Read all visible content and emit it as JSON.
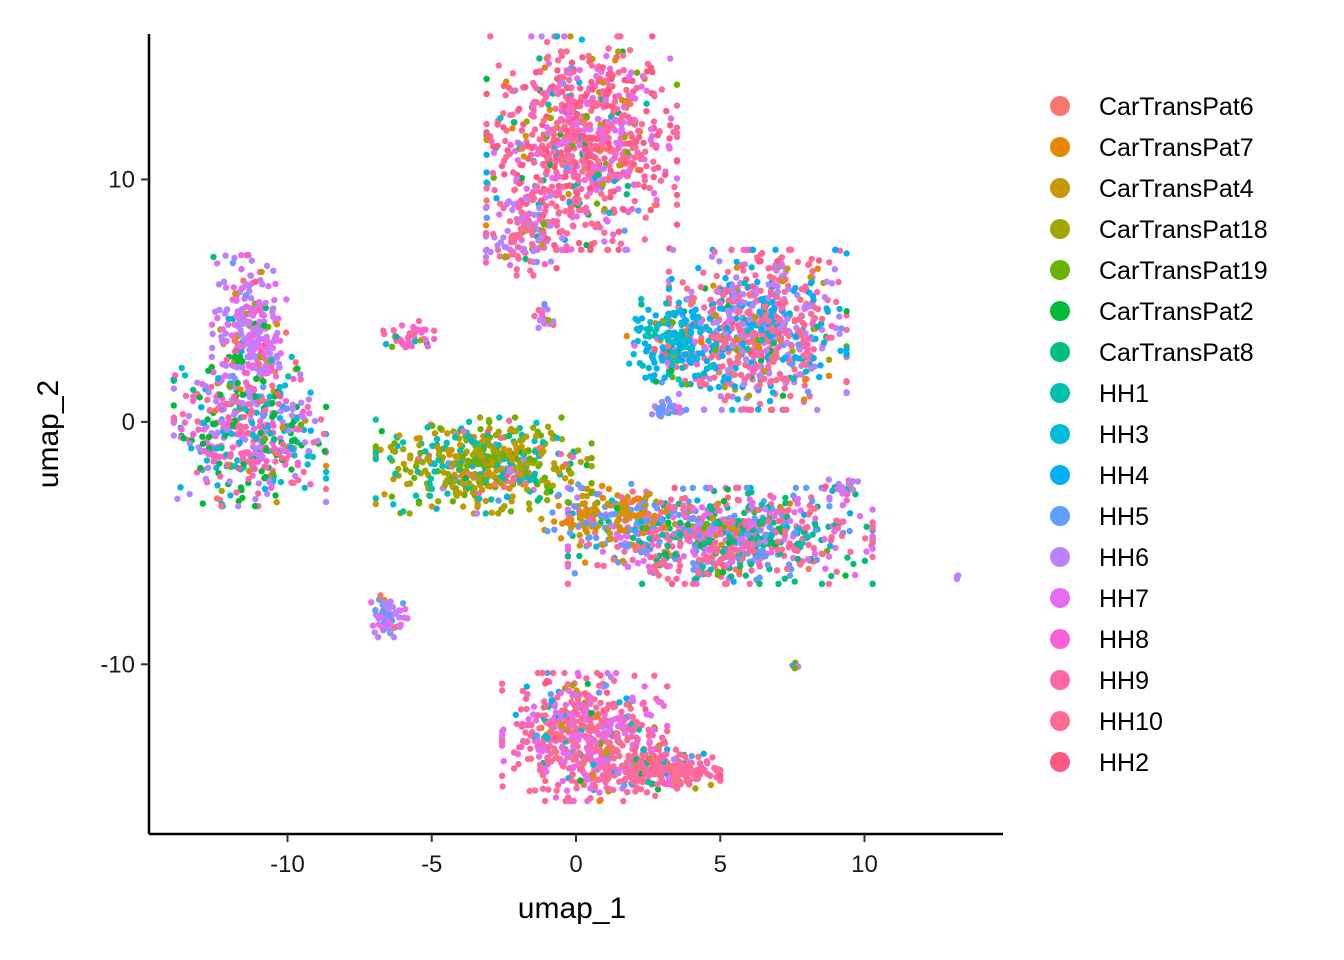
{
  "chart_data": {
    "type": "scatter",
    "title": "",
    "xlabel": "umap_1",
    "ylabel": "umap_2",
    "xlim": [
      -14.8,
      14.8
    ],
    "ylim": [
      -17.0,
      16.0
    ],
    "xticks": [
      -10,
      -5,
      0,
      5,
      10
    ],
    "xtick_labels": [
      "-10",
      "-5",
      "0",
      "5",
      "10"
    ],
    "yticks": [
      -10,
      0,
      10
    ],
    "ytick_labels": [
      "-10",
      "0",
      "10"
    ],
    "grid": false,
    "legend_position": "right",
    "series": [
      {
        "name": "CarTransPat6",
        "color": "#F8766D"
      },
      {
        "name": "CarTransPat7",
        "color": "#E58700"
      },
      {
        "name": "CarTransPat4",
        "color": "#C99800"
      },
      {
        "name": "CarTransPat18",
        "color": "#A3A500"
      },
      {
        "name": "CarTransPat19",
        "color": "#6BB100"
      },
      {
        "name": "CarTransPat2",
        "color": "#00BA38"
      },
      {
        "name": "CarTransPat8",
        "color": "#00BF7D"
      },
      {
        "name": "HH1",
        "color": "#00C0AF"
      },
      {
        "name": "HH3",
        "color": "#00BCD8"
      },
      {
        "name": "HH4",
        "color": "#00B0F6"
      },
      {
        "name": "HH5",
        "color": "#619CFF"
      },
      {
        "name": "HH6",
        "color": "#B983FF"
      },
      {
        "name": "HH7",
        "color": "#E76BF3"
      },
      {
        "name": "HH8",
        "color": "#FD61D1"
      },
      {
        "name": "HH9",
        "color": "#FF67A4"
      },
      {
        "name": "HH10",
        "color": "#FF6C91"
      },
      {
        "name": "HH2",
        "color": "#FF5A84"
      }
    ],
    "clusters": [
      {
        "center": [
          0.2,
          11.5
        ],
        "spread": [
          1.5,
          2.0
        ],
        "n": 900,
        "dominant": [
          14,
          15,
          12,
          16
        ]
      },
      {
        "center": [
          -1.8,
          7.8
        ],
        "spread": [
          0.6,
          0.8
        ],
        "n": 140,
        "dominant": [
          14,
          15,
          11
        ]
      },
      {
        "center": [
          -11.3,
          3.8
        ],
        "spread": [
          0.6,
          1.4
        ],
        "n": 260,
        "dominant": [
          11,
          12
        ]
      },
      {
        "center": [
          -11.3,
          -0.4
        ],
        "spread": [
          1.2,
          1.4
        ],
        "n": 520,
        "dominant": [
          13,
          14,
          8,
          5,
          11
        ]
      },
      {
        "center": [
          6.3,
          3.8
        ],
        "spread": [
          1.4,
          1.5
        ],
        "n": 760,
        "dominant": [
          14,
          15,
          11,
          9
        ]
      },
      {
        "center": [
          3.3,
          3.3
        ],
        "spread": [
          0.7,
          0.8
        ],
        "n": 200,
        "dominant": [
          9,
          7,
          8
        ]
      },
      {
        "center": [
          -3.2,
          -1.8
        ],
        "spread": [
          1.7,
          0.9
        ],
        "n": 520,
        "dominant": [
          2,
          3,
          4,
          7
        ]
      },
      {
        "center": [
          5.0,
          -4.7
        ],
        "spread": [
          2.4,
          0.9
        ],
        "n": 820,
        "dominant": [
          14,
          15,
          12,
          10,
          6
        ]
      },
      {
        "center": [
          1.0,
          -3.8
        ],
        "spread": [
          1.0,
          0.6
        ],
        "n": 160,
        "dominant": [
          1,
          2,
          10
        ]
      },
      {
        "center": [
          0.3,
          -13.0
        ],
        "spread": [
          1.3,
          1.2
        ],
        "n": 600,
        "dominant": [
          14,
          15,
          12
        ]
      },
      {
        "center": [
          2.8,
          -14.4
        ],
        "spread": [
          1.0,
          0.4
        ],
        "n": 240,
        "dominant": [
          14,
          15
        ]
      },
      {
        "center": [
          -6.5,
          -8.0
        ],
        "spread": [
          0.3,
          0.4
        ],
        "n": 70,
        "dominant": [
          11,
          12,
          10
        ]
      },
      {
        "center": [
          -5.8,
          3.5
        ],
        "spread": [
          0.4,
          0.3
        ],
        "n": 40,
        "dominant": [
          13,
          14
        ]
      },
      {
        "center": [
          -1.0,
          4.2
        ],
        "spread": [
          0.2,
          0.3
        ],
        "n": 20,
        "dominant": [
          13,
          11
        ]
      },
      {
        "center": [
          3.2,
          0.5
        ],
        "spread": [
          0.3,
          0.2
        ],
        "n": 25,
        "dominant": [
          11,
          10
        ]
      },
      {
        "center": [
          9.2,
          -2.8
        ],
        "spread": [
          0.3,
          0.2
        ],
        "n": 25,
        "dominant": [
          13,
          11
        ]
      },
      {
        "center": [
          7.6,
          -10.1
        ],
        "spread": [
          0.1,
          0.1
        ],
        "n": 8,
        "dominant": [
          13,
          11
        ]
      },
      {
        "center": [
          13.2,
          -6.4
        ],
        "spread": [
          0.05,
          0.05
        ],
        "n": 4,
        "dominant": [
          10,
          11
        ]
      }
    ]
  }
}
